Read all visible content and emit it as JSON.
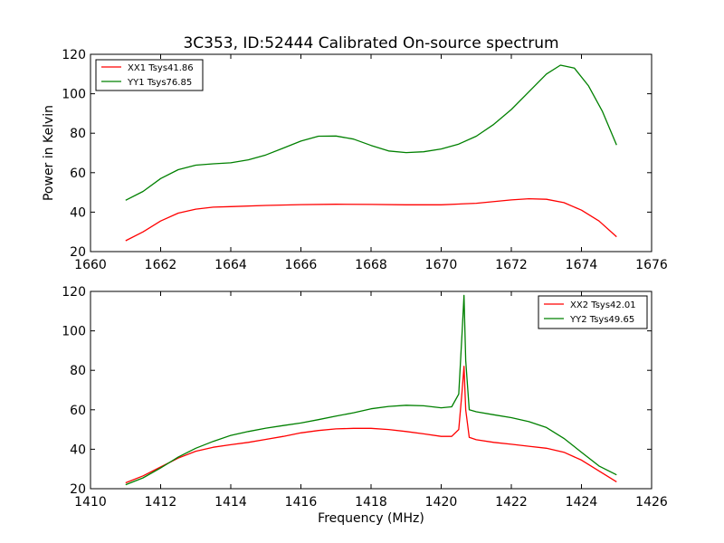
{
  "figure": {
    "title": "3C353, ID:52444 Calibrated On-source spectrum"
  },
  "chart_data": [
    {
      "type": "line",
      "title": "3C353, ID:52444 Calibrated On-source spectrum",
      "xlabel": "",
      "ylabel": "Power in Kelvin",
      "xlim": [
        1660,
        1676
      ],
      "ylim": [
        20,
        120
      ],
      "xticks": [
        1660,
        1662,
        1664,
        1666,
        1668,
        1670,
        1672,
        1674,
        1676
      ],
      "yticks": [
        20,
        40,
        60,
        80,
        100,
        120
      ],
      "legend_position": "top-left",
      "grid": false,
      "series": [
        {
          "name": "XX1 Tsys41.86",
          "color": "#ff0000",
          "x": [
            1661.0,
            1661.5,
            1662.0,
            1662.5,
            1663.0,
            1663.5,
            1664.0,
            1665.0,
            1666.0,
            1667.0,
            1668.0,
            1669.0,
            1670.0,
            1671.0,
            1672.0,
            1672.5,
            1673.0,
            1673.5,
            1674.0,
            1674.5,
            1675.0
          ],
          "y": [
            25.5,
            30.0,
            35.5,
            39.5,
            41.5,
            42.5,
            42.8,
            43.4,
            43.8,
            44.0,
            43.9,
            43.7,
            43.7,
            44.5,
            46.2,
            46.8,
            46.5,
            44.8,
            41.0,
            35.5,
            27.5
          ]
        },
        {
          "name": "YY1 Tsys76.85",
          "color": "#008000",
          "x": [
            1661.0,
            1661.5,
            1662.0,
            1662.5,
            1663.0,
            1663.5,
            1664.0,
            1664.5,
            1665.0,
            1665.5,
            1666.0,
            1666.5,
            1667.0,
            1667.5,
            1668.0,
            1668.5,
            1669.0,
            1669.5,
            1670.0,
            1670.5,
            1671.0,
            1671.5,
            1672.0,
            1672.5,
            1673.0,
            1673.4,
            1673.8,
            1674.2,
            1674.6,
            1675.0
          ],
          "y": [
            46.0,
            50.5,
            57.0,
            61.5,
            63.8,
            64.5,
            65.0,
            66.5,
            69.0,
            72.5,
            76.0,
            78.5,
            78.6,
            77.0,
            73.8,
            71.0,
            70.2,
            70.6,
            72.0,
            74.5,
            78.5,
            84.5,
            92.0,
            101.0,
            110.0,
            114.5,
            113.0,
            104.0,
            91.0,
            74.0
          ]
        }
      ]
    },
    {
      "type": "line",
      "title": "",
      "xlabel": "Frequency (MHz)",
      "ylabel": "",
      "xlim": [
        1410,
        1426
      ],
      "ylim": [
        20,
        120
      ],
      "xticks": [
        1410,
        1412,
        1414,
        1416,
        1418,
        1420,
        1422,
        1424,
        1426
      ],
      "yticks": [
        20,
        40,
        60,
        80,
        100,
        120
      ],
      "legend_position": "top-right",
      "grid": false,
      "series": [
        {
          "name": "XX2 Tsys42.01",
          "color": "#ff0000",
          "x": [
            1411.0,
            1411.5,
            1412.0,
            1412.5,
            1413.0,
            1413.5,
            1414.0,
            1414.5,
            1415.0,
            1415.5,
            1416.0,
            1416.5,
            1417.0,
            1417.5,
            1418.0,
            1418.5,
            1419.0,
            1419.5,
            1420.0,
            1420.3,
            1420.5,
            1420.6,
            1420.65,
            1420.7,
            1420.8,
            1421.0,
            1421.5,
            1422.0,
            1422.5,
            1423.0,
            1423.5,
            1424.0,
            1424.5,
            1425.0
          ],
          "y": [
            23.0,
            26.5,
            31.0,
            35.5,
            39.0,
            41.0,
            42.3,
            43.5,
            45.0,
            46.5,
            48.3,
            49.5,
            50.3,
            50.6,
            50.6,
            50.0,
            49.0,
            47.8,
            46.5,
            46.5,
            50.0,
            70.0,
            82.0,
            60.0,
            46.0,
            44.8,
            43.5,
            42.5,
            41.5,
            40.5,
            38.5,
            34.5,
            29.0,
            23.5
          ]
        },
        {
          "name": "YY2 Tsys49.65",
          "color": "#008000",
          "x": [
            1411.0,
            1411.5,
            1412.0,
            1412.5,
            1413.0,
            1413.5,
            1414.0,
            1414.5,
            1415.0,
            1415.5,
            1416.0,
            1416.5,
            1417.0,
            1417.5,
            1418.0,
            1418.5,
            1419.0,
            1419.5,
            1420.0,
            1420.3,
            1420.5,
            1420.6,
            1420.65,
            1420.7,
            1420.8,
            1421.0,
            1421.5,
            1422.0,
            1422.5,
            1423.0,
            1423.5,
            1424.0,
            1424.5,
            1425.0
          ],
          "y": [
            22.0,
            25.5,
            30.5,
            36.0,
            40.5,
            44.0,
            47.0,
            49.0,
            50.7,
            52.0,
            53.3,
            55.0,
            56.8,
            58.5,
            60.5,
            61.7,
            62.3,
            62.0,
            61.0,
            61.5,
            68.0,
            100.0,
            118.0,
            85.0,
            60.0,
            59.0,
            57.5,
            56.0,
            54.0,
            51.0,
            45.5,
            38.5,
            31.5,
            27.0
          ]
        }
      ]
    }
  ]
}
